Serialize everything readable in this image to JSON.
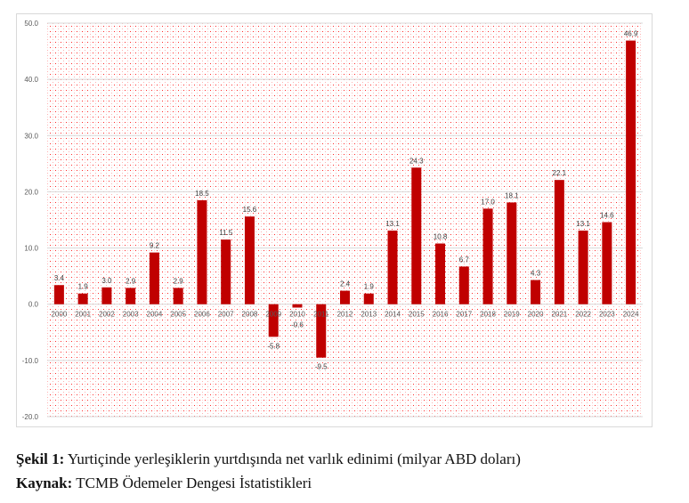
{
  "chart_data": {
    "type": "bar",
    "categories": [
      "2000",
      "2001",
      "2002",
      "2003",
      "2004",
      "2005",
      "2006",
      "2007",
      "2008",
      "2009",
      "2010",
      "2011",
      "2012",
      "2013",
      "2014",
      "2015",
      "2016",
      "2017",
      "2018",
      "2019",
      "2020",
      "2021",
      "2022",
      "2023",
      "2024"
    ],
    "values": [
      3.4,
      1.9,
      3.0,
      2.9,
      9.2,
      2.9,
      18.5,
      11.5,
      15.6,
      -5.8,
      -0.6,
      -9.5,
      2.4,
      1.9,
      13.1,
      24.3,
      10.8,
      6.7,
      17.0,
      18.1,
      4.3,
      22.1,
      13.1,
      14.6,
      46.9
    ],
    "ylim": [
      -20,
      50
    ],
    "yticks": [
      "50.0",
      "40.0",
      "30.0",
      "20.0",
      "10.0",
      "0.0",
      "-10.0",
      "-20.0"
    ],
    "grid": true,
    "data_labels": true,
    "bar_color": "#c00000",
    "background": "red dotted pattern"
  },
  "caption": {
    "figure_label": "Şekil 1:",
    "figure_text": " Yurtiçinde yerleşiklerin yurtdışında net varlık edinimi  (milyar ABD doları)",
    "source_label": "Kaynak:",
    "source_text": " TCMB Ödemeler Dengesi İstatistikleri"
  }
}
